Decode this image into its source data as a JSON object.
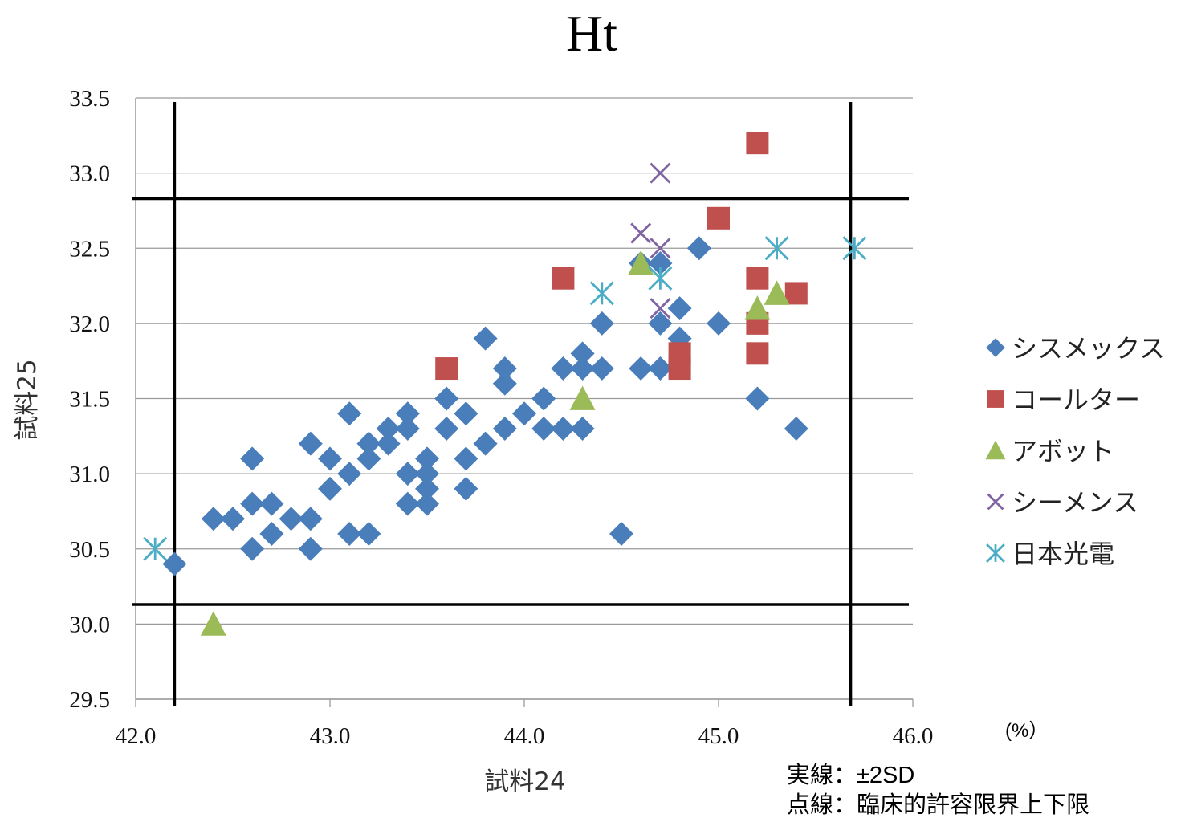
{
  "chart_data": {
    "type": "scatter",
    "title": "Ht",
    "xlabel": "試料24",
    "ylabel": "試料25",
    "unit": "(%）",
    "xlim": [
      42.0,
      46.0
    ],
    "ylim": [
      29.5,
      33.5
    ],
    "x_ticks": [
      "42.0",
      "43.0",
      "44.0",
      "45.0",
      "46.0"
    ],
    "y_ticks": [
      "29.5",
      "30.0",
      "30.5",
      "31.0",
      "31.5",
      "32.0",
      "32.5",
      "33.0",
      "33.5"
    ],
    "grid": true,
    "legend_position": "right",
    "reference_lines": {
      "x": [
        42.2,
        45.68
      ],
      "y": [
        30.13,
        32.83
      ]
    },
    "notes": [
      "実線：±2SD",
      "点線：臨床的許容限界上下限"
    ],
    "series": [
      {
        "name": "シスメックス",
        "marker": "diamond",
        "color": "#4a7ebb",
        "points": [
          [
            42.2,
            30.4
          ],
          [
            42.4,
            30.7
          ],
          [
            42.5,
            30.7
          ],
          [
            42.6,
            31.1
          ],
          [
            42.6,
            30.8
          ],
          [
            42.6,
            30.5
          ],
          [
            42.7,
            30.8
          ],
          [
            42.7,
            30.6
          ],
          [
            42.8,
            30.7
          ],
          [
            42.9,
            31.2
          ],
          [
            42.9,
            30.7
          ],
          [
            42.9,
            30.5
          ],
          [
            43.0,
            31.1
          ],
          [
            43.0,
            30.9
          ],
          [
            43.1,
            31.4
          ],
          [
            43.1,
            31.0
          ],
          [
            43.1,
            30.6
          ],
          [
            43.2,
            31.2
          ],
          [
            43.2,
            31.1
          ],
          [
            43.2,
            30.6
          ],
          [
            43.3,
            31.3
          ],
          [
            43.3,
            31.2
          ],
          [
            43.4,
            31.4
          ],
          [
            43.4,
            31.3
          ],
          [
            43.4,
            31.0
          ],
          [
            43.4,
            30.8
          ],
          [
            43.5,
            31.1
          ],
          [
            43.5,
            31.0
          ],
          [
            43.5,
            30.9
          ],
          [
            43.5,
            30.8
          ],
          [
            43.6,
            31.5
          ],
          [
            43.6,
            31.3
          ],
          [
            43.7,
            31.4
          ],
          [
            43.7,
            31.1
          ],
          [
            43.7,
            30.9
          ],
          [
            43.8,
            31.9
          ],
          [
            43.8,
            31.2
          ],
          [
            43.9,
            31.7
          ],
          [
            43.9,
            31.6
          ],
          [
            43.9,
            31.3
          ],
          [
            44.0,
            31.4
          ],
          [
            44.1,
            31.5
          ],
          [
            44.1,
            31.3
          ],
          [
            44.2,
            31.7
          ],
          [
            44.2,
            31.3
          ],
          [
            44.3,
            31.8
          ],
          [
            44.3,
            31.7
          ],
          [
            44.3,
            31.3
          ],
          [
            44.4,
            32.0
          ],
          [
            44.4,
            31.7
          ],
          [
            44.5,
            30.6
          ],
          [
            44.6,
            32.4
          ],
          [
            44.6,
            31.7
          ],
          [
            44.7,
            32.4
          ],
          [
            44.7,
            32.0
          ],
          [
            44.7,
            31.7
          ],
          [
            44.8,
            32.1
          ],
          [
            44.8,
            31.9
          ],
          [
            44.9,
            32.5
          ],
          [
            45.0,
            32.0
          ],
          [
            45.2,
            31.5
          ],
          [
            45.4,
            31.3
          ]
        ]
      },
      {
        "name": "コールター",
        "marker": "square",
        "color": "#c0504d",
        "points": [
          [
            43.6,
            31.7
          ],
          [
            44.2,
            32.3
          ],
          [
            44.8,
            31.8
          ],
          [
            44.8,
            31.7
          ],
          [
            45.0,
            32.7
          ],
          [
            45.2,
            33.2
          ],
          [
            45.2,
            32.3
          ],
          [
            45.2,
            32.0
          ],
          [
            45.2,
            31.8
          ],
          [
            45.4,
            32.2
          ]
        ]
      },
      {
        "name": "アボット",
        "marker": "triangle",
        "color": "#9bbb59",
        "points": [
          [
            42.4,
            30.0
          ],
          [
            44.3,
            31.5
          ],
          [
            44.6,
            32.4
          ],
          [
            45.2,
            32.1
          ],
          [
            45.3,
            32.2
          ]
        ]
      },
      {
        "name": "シーメンス",
        "marker": "x",
        "color": "#8064a2",
        "points": [
          [
            44.6,
            32.6
          ],
          [
            44.7,
            33.0
          ],
          [
            44.7,
            32.5
          ],
          [
            44.7,
            32.1
          ]
        ]
      },
      {
        "name": "日本光電",
        "marker": "asterisk",
        "color": "#4bacc6",
        "points": [
          [
            42.1,
            30.5
          ],
          [
            44.4,
            32.2
          ],
          [
            44.7,
            32.3
          ],
          [
            45.3,
            32.5
          ],
          [
            45.7,
            32.5
          ]
        ]
      }
    ]
  }
}
